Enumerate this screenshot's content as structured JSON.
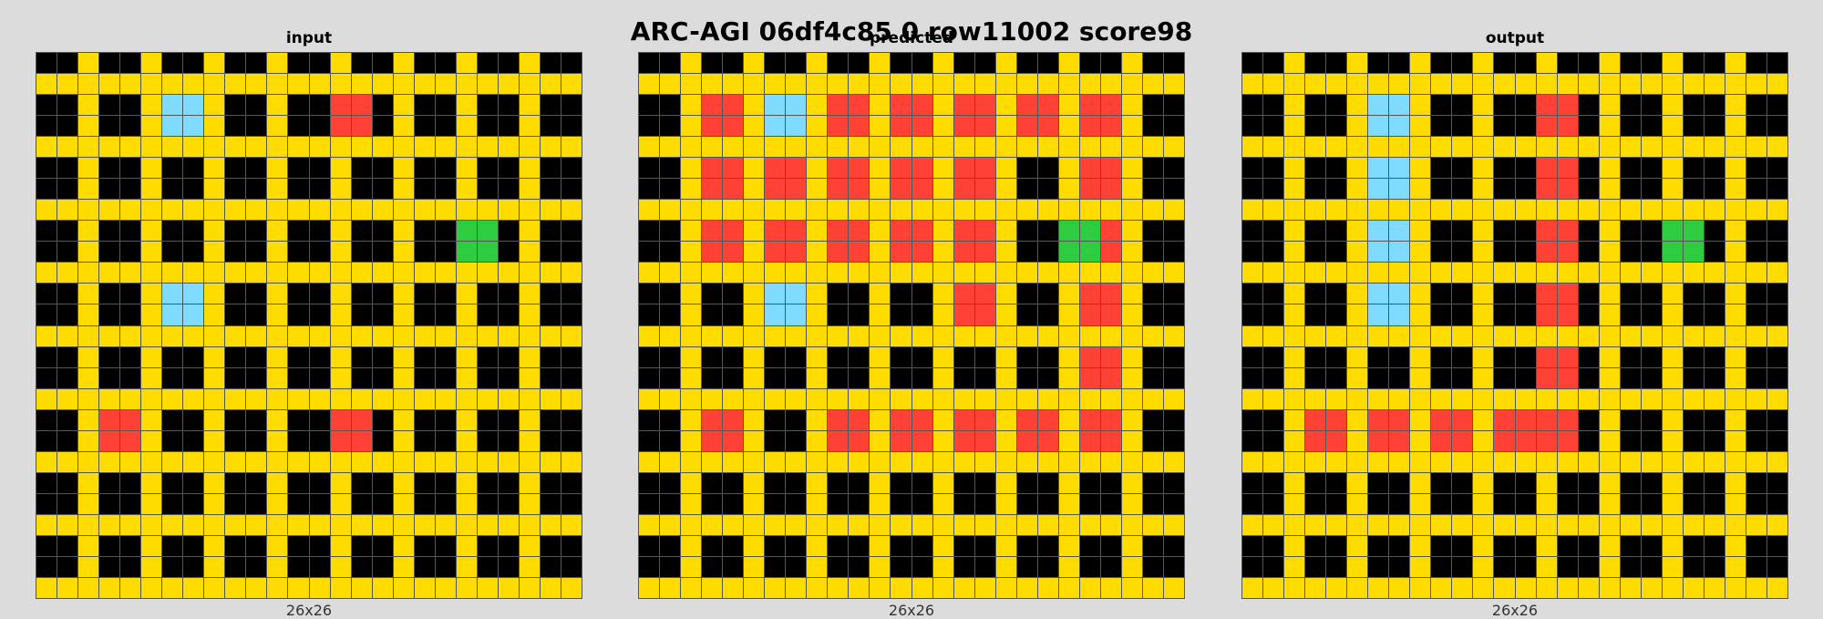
{
  "title": "ARC-AGI 06df4c85 0 row11002 score98",
  "palette": {
    "0": "#000000",
    "1": "#ff4136",
    "2": "#2ecc40",
    "3": "#7fdbff",
    "4": "#ffdc00"
  },
  "panels": [
    {
      "label": "input",
      "dims": "26x26",
      "rows": [
        "00400400400400400400400400",
        "44444444444444444444444444",
        "00400433400400110400400400",
        "00400433400400110400400400",
        "44444444444444444444444444",
        "00400400400400400400400400",
        "00400400400400400400400400",
        "44444444444444444444444444",
        "00400400400400400400220400",
        "00400400400400400400220400",
        "44444444444444444444444444",
        "00400433400400400400400400",
        "00400433400400400400400400",
        "44444444444444444444444444",
        "00400400400400400400400400",
        "00400400400400400400400400",
        "44444444444444444444444444",
        "00411400400400110400400400",
        "00411400400400110400400400",
        "44444444444444444444444444",
        "00400400400400400400400400",
        "00400400400400400400400400",
        "44444444444444444444444444",
        "00400400400400400400400400",
        "00400400400400400400400400",
        "44444444444444444444444444"
      ]
    },
    {
      "label": "predicted",
      "dims": "26x26",
      "rows": [
        "00400400400400400400400400",
        "44444444444444444444444444",
        "00411433411411411411411400",
        "00411433411411411411411400",
        "44444444444444444444444444",
        "00411411411411411400411400",
        "00411411411411411400411400",
        "44444444444444444444444444",
        "00411411411411411400221400",
        "00411411411411411400221400",
        "44444444444444444444444444",
        "00400433400400411400411400",
        "00400433400400411400411400",
        "44444444444444444444444444",
        "00400400400400400400411400",
        "00400400400400400400411400",
        "44444444444444444444444444",
        "00411400411411411411411400",
        "00411400411411411411411400",
        "44444444444444444444444444",
        "00400400400400400400400400",
        "00400400400400400400400400",
        "44444444444444444444444444",
        "00400400400400400400400400",
        "00400400400400400400400400",
        "44444444444444444444444444"
      ]
    },
    {
      "label": "output",
      "dims": "26x26",
      "rows": [
        "00400400400400400400400400",
        "44444444444444444444444444",
        "00400433400400110400400400",
        "00400433400400110400400400",
        "44444444444444444444444444",
        "00400433400400110400400400",
        "00400433400400110400400400",
        "44444444444444444444444444",
        "00400433400400110400220400",
        "00400433400400110400220400",
        "44444444444444444444444444",
        "00400433400400110400400400",
        "00400433400400110400400400",
        "44444444444444444444444444",
        "00400400400400110400400400",
        "00400400400400110400400400",
        "44444444444444444444444444",
        "00411411411411110400400400",
        "00411411411411110400400400",
        "44444444444444444444444444",
        "00400400400400400400400400",
        "00400400400400400400400400",
        "44444444444444444444444444",
        "00400400400400400400400400",
        "00400400400400400400400400",
        "44444444444444444444444444"
      ]
    }
  ]
}
